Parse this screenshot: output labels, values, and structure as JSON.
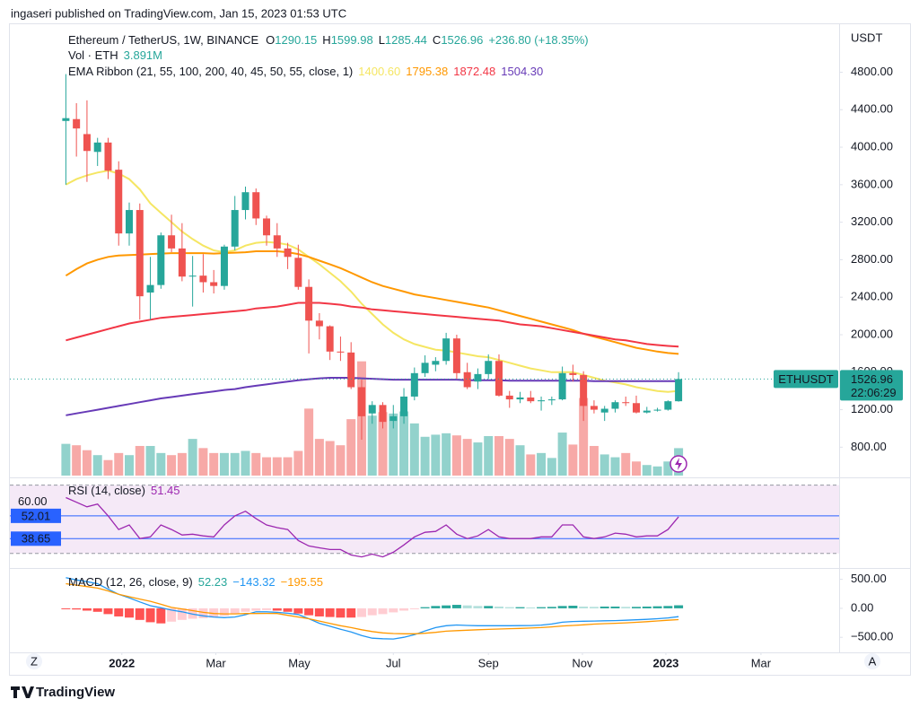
{
  "header": "ingaseri published on TradingView.com, Jan 15, 2023 01:53 UTC",
  "footer_logo": "TradingView",
  "buttons": [
    "Z",
    "A"
  ],
  "chart_data": {
    "type": "candlestick",
    "title": "Ethereum / TetherUS, 1W, BINANCE",
    "ohlc_letters": [
      "O",
      "H",
      "L",
      "C"
    ],
    "change": "+236.80 (+18.35%)",
    "y_unit": "USDT",
    "symbol": "ETHUSDT",
    "countdown": "22:06:29",
    "up_color": "#26a69a",
    "down_color": "#ef5350",
    "open": [
      4280,
      4300,
      4140,
      3950,
      4050,
      3760,
      3080,
      3330,
      2450,
      2530,
      3060,
      2920,
      2620,
      2630,
      2560,
      2520,
      2940,
      3330,
      3520,
      3240,
      3060,
      2920,
      2820,
      2510,
      2150,
      2090,
      1820,
      1810,
      1440,
      1160,
      1250,
      1080,
      1130,
      1340,
      1590,
      1680,
      1720,
      1960,
      1600,
      1500,
      1580,
      1720,
      1350,
      1310,
      1330,
      1290,
      1300,
      1310,
      1590,
      1570,
      1240,
      1170,
      1210,
      1280,
      1270,
      1170,
      1190,
      1200,
      1290.15
    ],
    "high": [
      4780,
      4470,
      4500,
      4100,
      4100,
      3850,
      3410,
      3400,
      2830,
      3090,
      3280,
      3190,
      2840,
      2860,
      2690,
      2960,
      3480,
      3580,
      3560,
      3270,
      3190,
      2980,
      2960,
      2590,
      2230,
      2100,
      1980,
      1920,
      1520,
      1290,
      1280,
      1250,
      1430,
      1650,
      1780,
      1760,
      2020,
      2000,
      1700,
      1640,
      1790,
      1790,
      1400,
      1390,
      1400,
      1340,
      1340,
      1660,
      1680,
      1610,
      1300,
      1240,
      1300,
      1340,
      1350,
      1230,
      1220,
      1300,
      1599.98
    ],
    "low": [
      3600,
      3900,
      3630,
      3800,
      3660,
      2950,
      2950,
      2160,
      2160,
      2490,
      2880,
      2570,
      2300,
      2450,
      2440,
      2480,
      2900,
      3230,
      3170,
      2950,
      2830,
      2700,
      2480,
      1800,
      1950,
      1730,
      1720,
      1420,
      880,
      1050,
      1000,
      1000,
      1050,
      1300,
      1550,
      1610,
      1680,
      1530,
      1420,
      1420,
      1530,
      1340,
      1220,
      1270,
      1270,
      1190,
      1250,
      1300,
      1500,
      1080,
      1160,
      1080,
      1170,
      1240,
      1160,
      1160,
      1180,
      1190,
      1285.44
    ],
    "close": [
      4310,
      4200,
      3960,
      4050,
      3750,
      3080,
      3330,
      2410,
      2530,
      3060,
      2920,
      2620,
      2630,
      2560,
      2520,
      2940,
      3330,
      3520,
      3240,
      3060,
      2920,
      2830,
      2510,
      2150,
      2090,
      1820,
      1810,
      1440,
      1130,
      1250,
      1070,
      1130,
      1340,
      1590,
      1700,
      1720,
      1960,
      1590,
      1440,
      1580,
      1720,
      1350,
      1310,
      1330,
      1290,
      1300,
      1310,
      1590,
      1570,
      1240,
      1200,
      1210,
      1280,
      1270,
      1170,
      1190,
      1200,
      1290,
      1526.96
    ],
    "xlim": [
      -5.3,
      73.2
    ],
    "xticks": [
      {
        "value": 5.3,
        "label": "2022"
      },
      {
        "value": 14.2,
        "label": "Mar"
      },
      {
        "value": 22.1,
        "label": "May"
      },
      {
        "value": 31,
        "label": "Jul"
      },
      {
        "value": 40,
        "label": "Sep"
      },
      {
        "value": 48.9,
        "label": "Nov"
      },
      {
        "value": 56.8,
        "label": "2023"
      },
      {
        "value": 65.8,
        "label": "Mar"
      }
    ],
    "ylim": [
      497,
      5312
    ],
    "yticks": [
      {
        "value": 800,
        "label": "800.00"
      },
      {
        "value": 1200,
        "label": "1200.00"
      },
      {
        "value": 1600,
        "label": "1600.00"
      },
      {
        "value": 2000,
        "label": "2000.00"
      },
      {
        "value": 2400,
        "label": "2400.00"
      },
      {
        "value": 2800,
        "label": "2800.00"
      },
      {
        "value": 3200,
        "label": "3200.00"
      },
      {
        "value": 3600,
        "label": "3600.00"
      },
      {
        "value": 4000,
        "label": "4000.00"
      },
      {
        "value": 4400,
        "label": "4400.00"
      },
      {
        "value": 4800,
        "label": "4800.00"
      }
    ],
    "volume": {
      "name": "Vol · ETH",
      "last_label": "3.891M",
      "ylim": [
        0,
        64
      ],
      "values": [
        4.5,
        4.3,
        3.6,
        2.9,
        2.2,
        3.2,
        2.9,
        4.2,
        4.2,
        3.2,
        2.9,
        3.2,
        5.2,
        3.9,
        3.2,
        3.2,
        3.2,
        3.5,
        3.2,
        2.6,
        2.6,
        2.6,
        3.5,
        9.5,
        5.2,
        4.9,
        4.3,
        8.0,
        16.2,
        8.5,
        9.0,
        8.8,
        9.1,
        7.4,
        5.5,
        5.8,
        6.0,
        5.7,
        5.2,
        4.7,
        5.6,
        5.6,
        5.2,
        4.3,
        3.0,
        3.2,
        2.5,
        6.1,
        4.4,
        11.0,
        4.2,
        3.0,
        2.6,
        3.2,
        2.0,
        1.5,
        1.3,
        2.0,
        3.891
      ]
    },
    "ema": {
      "name": "EMA Ribbon (21, 55, 100, 200, 40, 45, 50, 55, close, 1)",
      "series": [
        {
          "color": "#f5e663",
          "last_label": "1400.60",
          "values": [
            3600,
            3660,
            3700,
            3730,
            3750,
            3720,
            3660,
            3550,
            3400,
            3300,
            3200,
            3100,
            3020,
            2950,
            2900,
            2880,
            2900,
            2950,
            2980,
            2990,
            2980,
            2960,
            2910,
            2830,
            2750,
            2660,
            2570,
            2460,
            2330,
            2220,
            2110,
            2020,
            1950,
            1900,
            1870,
            1840,
            1830,
            1810,
            1790,
            1770,
            1760,
            1730,
            1700,
            1670,
            1640,
            1620,
            1600,
            1600,
            1600,
            1570,
            1540,
            1510,
            1490,
            1470,
            1440,
            1420,
            1400,
            1390,
            1400.6
          ]
        },
        {
          "color": "#ff9800",
          "last_label": "1795.38",
          "values": [
            2630,
            2700,
            2760,
            2800,
            2830,
            2845,
            2850,
            2855,
            2860,
            2865,
            2870,
            2870,
            2870,
            2870,
            2865,
            2870,
            2875,
            2880,
            2890,
            2890,
            2890,
            2880,
            2860,
            2830,
            2790,
            2750,
            2710,
            2660,
            2610,
            2560,
            2520,
            2490,
            2460,
            2430,
            2410,
            2390,
            2370,
            2350,
            2330,
            2310,
            2290,
            2260,
            2230,
            2200,
            2170,
            2140,
            2110,
            2080,
            2050,
            2010,
            1980,
            1950,
            1920,
            1890,
            1860,
            1840,
            1820,
            1805,
            1795.38
          ]
        },
        {
          "color": "#f23645",
          "last_label": "1872.48",
          "values": [
            1940,
            1970,
            2000,
            2030,
            2060,
            2090,
            2120,
            2140,
            2160,
            2180,
            2190,
            2200,
            2210,
            2220,
            2230,
            2240,
            2250,
            2260,
            2280,
            2290,
            2300,
            2320,
            2340,
            2340,
            2340,
            2330,
            2320,
            2300,
            2290,
            2270,
            2260,
            2250,
            2240,
            2230,
            2220,
            2210,
            2200,
            2190,
            2180,
            2170,
            2160,
            2150,
            2130,
            2110,
            2100,
            2090,
            2070,
            2050,
            2030,
            2010,
            1990,
            1970,
            1950,
            1940,
            1920,
            1900,
            1890,
            1880,
            1872.48
          ]
        },
        {
          "color": "#673ab7",
          "last_label": "1504.30",
          "values": [
            1140,
            1160,
            1180,
            1200,
            1220,
            1240,
            1260,
            1280,
            1300,
            1320,
            1335,
            1350,
            1365,
            1380,
            1395,
            1410,
            1420,
            1440,
            1455,
            1470,
            1485,
            1500,
            1515,
            1525,
            1535,
            1540,
            1540,
            1540,
            1535,
            1530,
            1525,
            1520,
            1520,
            1520,
            1520,
            1520,
            1520,
            1520,
            1515,
            1515,
            1515,
            1515,
            1510,
            1510,
            1510,
            1510,
            1510,
            1510,
            1510,
            1510,
            1505,
            1505,
            1505,
            1505,
            1505,
            1505,
            1505,
            1505,
            1504.3
          ]
        }
      ]
    },
    "rsi": {
      "name": "RSI (14, close)",
      "color": "#9c27b0",
      "ylim": [
        22,
        74
      ],
      "band": [
        30,
        70
      ],
      "yticks": [
        {
          "value": 60,
          "label": "60.00"
        }
      ],
      "lines": [
        52.01,
        38.65
      ],
      "values": [
        62.7,
        60,
        57.3,
        58.9,
        52,
        44,
        46.7,
        38.7,
        39.7,
        46.7,
        44,
        40.8,
        41.3,
        40.3,
        39.7,
        46.7,
        52,
        54.7,
        50.4,
        46.7,
        45.1,
        44,
        37.6,
        34.4,
        33.3,
        32.3,
        32.3,
        29.1,
        28,
        29.6,
        28,
        30.7,
        35,
        39.7,
        42.4,
        42.9,
        46.7,
        41.3,
        38.7,
        40.3,
        44,
        39.7,
        38.7,
        38.7,
        38.7,
        39.7,
        39.7,
        46.7,
        46.7,
        39.7,
        38.7,
        39.7,
        41.9,
        41.3,
        39.7,
        40.3,
        40.3,
        44,
        51.45
      ]
    },
    "macd": {
      "name": "MACD (12, 26, close, 9)",
      "ylim": [
        -760,
        680
      ],
      "yticks": [
        {
          "value": 500,
          "label": "500.00"
        },
        {
          "value": 0,
          "label": "0.00"
        },
        {
          "value": -500,
          "label": "−500.00"
        }
      ],
      "histogram": [
        -10,
        -20,
        -40,
        -60,
        -100,
        -140,
        -160,
        -200,
        -240,
        -260,
        -230,
        -200,
        -180,
        -170,
        -160,
        -130,
        -90,
        -60,
        -40,
        -30,
        -40,
        -60,
        -90,
        -120,
        -140,
        -150,
        -160,
        -160,
        -150,
        -120,
        -100,
        -70,
        -40,
        -10,
        20,
        40,
        50,
        60,
        50,
        40,
        40,
        30,
        20,
        20,
        15,
        20,
        25,
        40,
        45,
        30,
        25,
        30,
        30,
        25,
        25,
        30,
        35,
        40,
        52.23
      ],
      "macd": {
        "color": "#2196f3",
        "last_label": "−143.32",
        "values": [
          530,
          490,
          460,
          424,
          330,
          242,
          180,
          110,
          45,
          10,
          -30,
          -60,
          -100,
          -130,
          -150,
          -160,
          -150,
          -110,
          -60,
          -60,
          -70,
          -85,
          -106,
          -180,
          -258,
          -310,
          -360,
          -409,
          -470,
          -515,
          -525,
          -530,
          -500,
          -455,
          -390,
          -333,
          -300,
          -288,
          -295,
          -300,
          -300,
          -300,
          -300,
          -298,
          -297,
          -290,
          -270,
          -240,
          -227,
          -222,
          -220,
          -215,
          -212,
          -205,
          -198,
          -190,
          -180,
          -165,
          -143.32
        ]
      },
      "signal": {
        "color": "#ff9800",
        "last_label": "−195.55",
        "values": [
          424,
          400,
          375,
          348,
          300,
          242,
          200,
          160,
          121,
          70,
          15,
          -10,
          -40,
          -70,
          -90,
          -95,
          -95,
          -90,
          -90,
          -88,
          -90,
          -120,
          -150,
          -180,
          -220,
          -260,
          -300,
          -333,
          -370,
          -400,
          -424,
          -435,
          -440,
          -440,
          -430,
          -415,
          -394,
          -385,
          -378,
          -370,
          -364,
          -358,
          -352,
          -346,
          -340,
          -333,
          -320,
          -305,
          -295,
          -285,
          -273,
          -265,
          -258,
          -250,
          -242,
          -230,
          -218,
          -206,
          -195.55
        ]
      }
    }
  }
}
